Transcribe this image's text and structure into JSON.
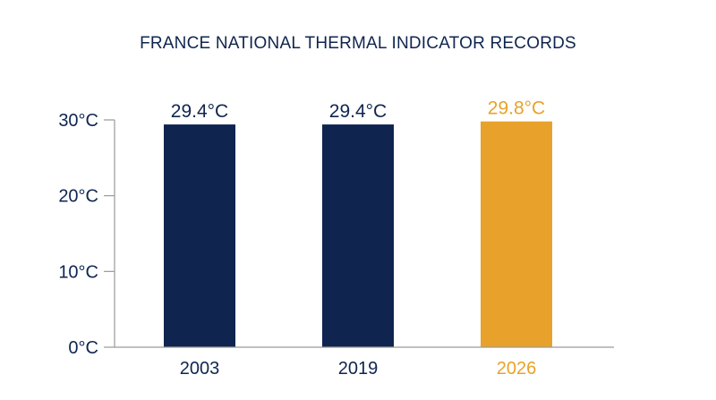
{
  "chart_data": {
    "type": "bar",
    "title": "FRANCE NATIONAL THERMAL INDICATOR RECORDS",
    "categories": [
      "2003",
      "2019",
      "2026"
    ],
    "values": [
      29.4,
      29.4,
      29.8
    ],
    "value_labels": [
      "29.4°C",
      "29.4°C",
      "29.8°C"
    ],
    "bar_colors": [
      "#0f2550",
      "#0f2550",
      "#e8a22b"
    ],
    "label_colors": [
      "#0f2550",
      "#0f2550",
      "#e8a22b"
    ],
    "yticks": [
      0,
      10,
      20,
      30
    ],
    "ytick_labels": [
      "0°C",
      "10°C",
      "20°C",
      "30°C"
    ],
    "ylim": [
      0,
      30
    ],
    "xlabel": "",
    "ylabel": "",
    "grid": false,
    "legend": "none",
    "axis_color": "#9a9a9a",
    "text_color": "#0f2550"
  }
}
